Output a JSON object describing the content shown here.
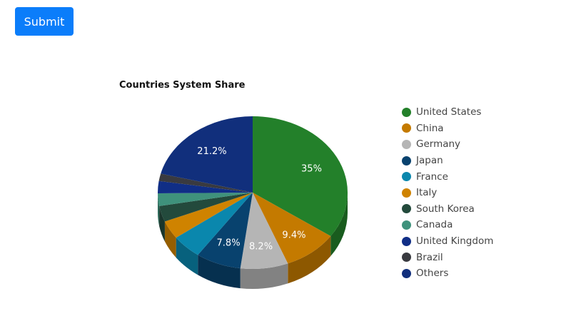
{
  "submit_button": {
    "label": "Submit"
  },
  "chart_data": {
    "type": "pie",
    "title": "Countries System Share",
    "legend_position": "right",
    "categories": [
      "United States",
      "China",
      "Germany",
      "Japan",
      "France",
      "Italy",
      "South Korea",
      "Canada",
      "United Kingdom",
      "Brazil",
      "Others"
    ],
    "values": [
      35,
      9.4,
      8.2,
      7.8,
      5.2,
      3.9,
      3.4,
      2.7,
      2.6,
      1.6,
      21.2
    ],
    "labels": [
      "35%",
      "9.4%",
      "8.2%",
      "7.8%",
      "",
      "",
      "",
      "",
      "",
      "",
      "21.2%"
    ],
    "colors": [
      "#23802a",
      "#c47a00",
      "#b5b5b5",
      "#08426e",
      "#0a87ad",
      "#cf8300",
      "#234a3c",
      "#3f927c",
      "#102e86",
      "#393a40",
      "#112f7c"
    ]
  }
}
